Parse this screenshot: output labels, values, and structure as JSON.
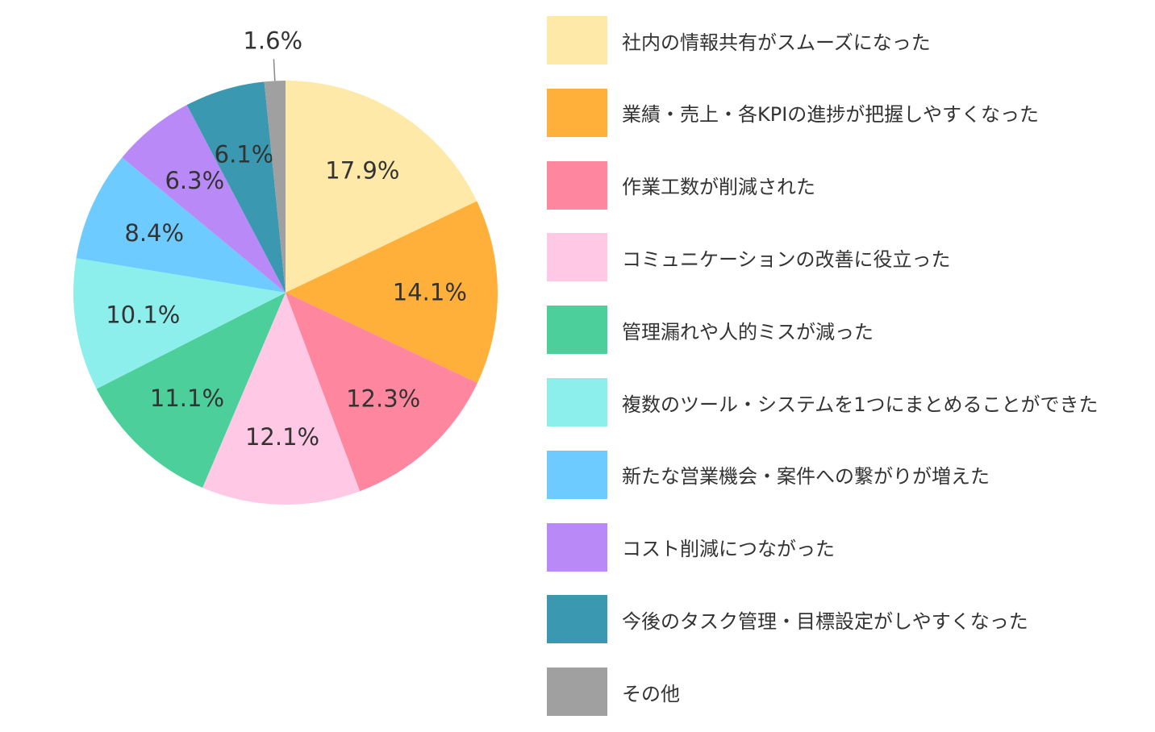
{
  "chart_data": {
    "type": "pie",
    "title": "",
    "categories": [
      "社内の情報共有がスムーズになった",
      "業績・売上・各KPIの進捗が把握しやすくなった",
      "作業工数が削減された",
      "コミュニケーションの改善に役立った",
      "管理漏れや人的ミスが減った",
      "複数のツール・システムを1つにまとめることができた",
      "新たな営業機会・案件への繋がりが増えた",
      "コスト削減につながった",
      "今後のタスク管理・目標設定がしやすくなった",
      "その他"
    ],
    "values": [
      17.9,
      14.1,
      12.3,
      12.1,
      11.1,
      10.1,
      8.4,
      6.3,
      6.1,
      1.6
    ],
    "value_labels": [
      "17.9%",
      "14.1%",
      "12.3%",
      "12.1%",
      "11.1%",
      "10.1%",
      "8.4%",
      "6.3%",
      "6.1%",
      "1.6%"
    ],
    "colors": [
      "#FFE9A8",
      "#FFB03B",
      "#FF869F",
      "#FFC9E6",
      "#4DCF9C",
      "#8CEFEC",
      "#6DCBFF",
      "#B98AF7",
      "#3A99B0",
      "#A0A0A0"
    ],
    "start_direction": "top",
    "direction": "clockwise",
    "legend_position": "right"
  }
}
